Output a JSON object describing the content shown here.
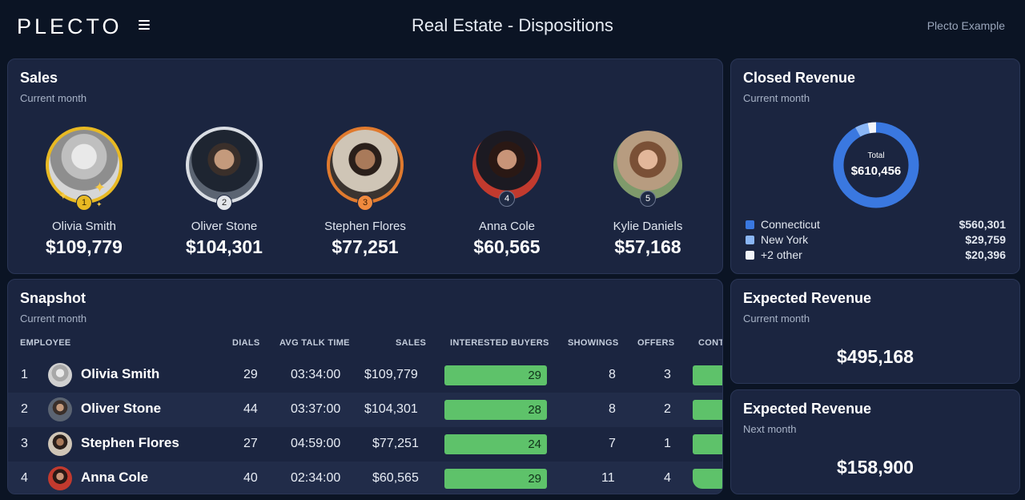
{
  "header": {
    "logo_text": "PLECTO",
    "title": "Real Estate - Dispositions",
    "account": "Plecto Example"
  },
  "sales": {
    "title": "Sales",
    "subtitle": "Current month",
    "leaders": [
      {
        "rank": "1",
        "name": "Olivia Smith",
        "value": "$109,779",
        "ring": "#e8b923"
      },
      {
        "rank": "2",
        "name": "Oliver Stone",
        "value": "$104,301",
        "ring": "#d9dde3"
      },
      {
        "rank": "3",
        "name": "Stephen Flores",
        "value": "$77,251",
        "ring": "#e07a2e"
      },
      {
        "rank": "4",
        "name": "Anna Cole",
        "value": "$60,565",
        "ring": "none"
      },
      {
        "rank": "5",
        "name": "Kylie Daniels",
        "value": "$57,168",
        "ring": "none"
      }
    ]
  },
  "closed_revenue": {
    "title": "Closed Revenue",
    "subtitle": "Current month",
    "donut_label": "Total",
    "donut_value": "$610,456",
    "legend": [
      {
        "label": "Connecticut",
        "value": "$560,301",
        "color": "#3a78e0",
        "share": 0.918
      },
      {
        "label": "New York",
        "value": "$29,759",
        "color": "#8ab6f5",
        "share": 0.049
      },
      {
        "label": "+2 other",
        "value": "$20,396",
        "color": "#f2f5fa",
        "share": 0.033
      }
    ]
  },
  "expected_current": {
    "title": "Expected Revenue",
    "subtitle": "Current month",
    "value": "$495,168"
  },
  "expected_next": {
    "title": "Expected Revenue",
    "subtitle": "Next month",
    "value": "$158,900"
  },
  "snapshot": {
    "title": "Snapshot",
    "subtitle": "Current month",
    "columns": [
      "EMPLOYEE",
      "DIALS",
      "AVG TALK TIME",
      "SALES",
      "INTERESTED BUYERS",
      "SHOWINGS",
      "OFFERS",
      "CONT"
    ],
    "rows": [
      {
        "rank": "1",
        "name": "Olivia Smith",
        "dials": "29",
        "talk": "03:34:00",
        "sales": "$109,779",
        "buyers": "29",
        "showings": "8",
        "offers": "3"
      },
      {
        "rank": "2",
        "name": "Oliver Stone",
        "dials": "44",
        "talk": "03:37:00",
        "sales": "$104,301",
        "buyers": "28",
        "showings": "8",
        "offers": "2"
      },
      {
        "rank": "3",
        "name": "Stephen Flores",
        "dials": "27",
        "talk": "04:59:00",
        "sales": "$77,251",
        "buyers": "24",
        "showings": "7",
        "offers": "1"
      },
      {
        "rank": "4",
        "name": "Anna Cole",
        "dials": "40",
        "talk": "02:34:00",
        "sales": "$60,565",
        "buyers": "29",
        "showings": "11",
        "offers": "4"
      }
    ]
  },
  "colors": {
    "background": "#0b1424",
    "panel": "#1b2540",
    "bar_green": "#5ec26a",
    "gold": "#e8b923",
    "bronze": "#e07a2e"
  }
}
